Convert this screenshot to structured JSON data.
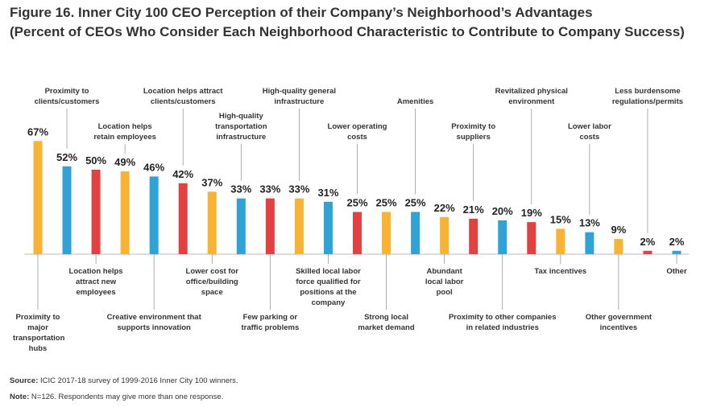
{
  "chart_data": {
    "type": "bar",
    "title": "Figure 16. Inner City 100 CEO Perception of their Company’s Neighborhood’s Advantages",
    "subtitle": "(Percent of CEOs Who Consider Each Neighborhood Characteristic to Contribute to Company Success)",
    "categories": [
      "Proximity to major transportation hubs",
      "Proximity to clients/customers",
      "Location helps attract new employees",
      "Location helps retain employees",
      "Creative environment that supports innovation",
      "Location helps attract clients/customers",
      "Lower cost for office/building space",
      "High-quality transportation infrastructure",
      "Few parking or traffic problems",
      "High-quality general infrastructure",
      "Skilled local labor force qualified for positions at the company",
      "Lower operating costs",
      "Strong local market demand",
      "Amenities",
      "Abundant local labor pool",
      "Proximity to suppliers",
      "Proximity to other companies in related industries",
      "Revitalized physical environment",
      "Tax incentives",
      "Lower labor costs",
      "Other government incentives",
      "Less burdensome regulations/permits",
      "Other"
    ],
    "values": [
      67,
      52,
      50,
      49,
      46,
      42,
      37,
      33,
      33,
      33,
      31,
      25,
      25,
      25,
      22,
      21,
      20,
      19,
      15,
      13,
      9,
      2,
      2
    ],
    "value_labels": [
      "67%",
      "52%",
      "50%",
      "49%",
      "46%",
      "42%",
      "37%",
      "33%",
      "33%",
      "33%",
      "31%",
      "25%",
      "25%",
      "25%",
      "22%",
      "21%",
      "20%",
      "19%",
      "15%",
      "13%",
      "9%",
      "2%",
      "2%"
    ],
    "colors": [
      "#f7b334",
      "#2fa3d6",
      "#e2413f",
      "#f7b334",
      "#2fa3d6",
      "#e2413f",
      "#f7b334",
      "#2fa3d6",
      "#e2413f",
      "#f7b334",
      "#2fa3d6",
      "#e2413f",
      "#f7b334",
      "#2fa3d6",
      "#f7b334",
      "#e2413f",
      "#2fa3d6",
      "#e2413f",
      "#f7b334",
      "#2fa3d6",
      "#f7b334",
      "#e2413f",
      "#2fa3d6"
    ],
    "source_label": "Source:",
    "source": "ICIC 2017-18 survey of 1999-2016 Inner City 100 winners.",
    "note_label": "Note:",
    "note": "N=126. Respondents may give more than one response."
  }
}
